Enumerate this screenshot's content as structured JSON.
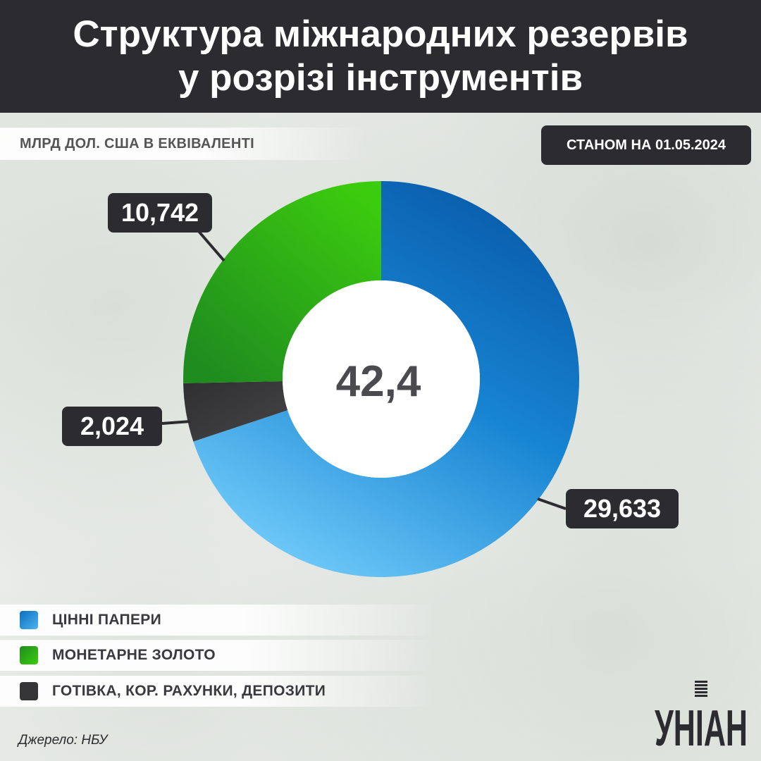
{
  "header": {
    "title_line1": "Структура міжнародних резервів",
    "title_line2": "у розрізі інструментів"
  },
  "units_label": "МЛРД ДОЛ. США В ЕКВІВАЛЕНТІ",
  "date_label": "СТАНОМ НА 01.05.2024",
  "chart_data": {
    "type": "pie",
    "center_label": "42,4",
    "slices": [
      {
        "name": "ЦІННІ ПАПЕРИ",
        "value": 29.633,
        "label": "29,633",
        "color": "#1a8ad6"
      },
      {
        "name": "ГОТІВКА, КОР. РАХУНКИ, ДЕПОЗИТИ",
        "value": 2.024,
        "label": "2,024",
        "color": "#3a3a3c"
      },
      {
        "name": "МОНЕТАРНЕ ЗОЛОТО",
        "value": 10.742,
        "label": "10,742",
        "color": "#2ea81a"
      }
    ]
  },
  "legend": [
    {
      "label": "ЦІННІ ПАПЕРИ",
      "color": "#1a8ad6"
    },
    {
      "label": "МОНЕТАРНЕ ЗОЛОТО",
      "color": "#2ea81a"
    },
    {
      "label": "ГОТІВКА, КОР. РАХУНКИ, ДЕПОЗИТИ",
      "color": "#3a3a3c"
    }
  ],
  "source": "Джерело: НБУ",
  "logo_text": "УНІАН"
}
